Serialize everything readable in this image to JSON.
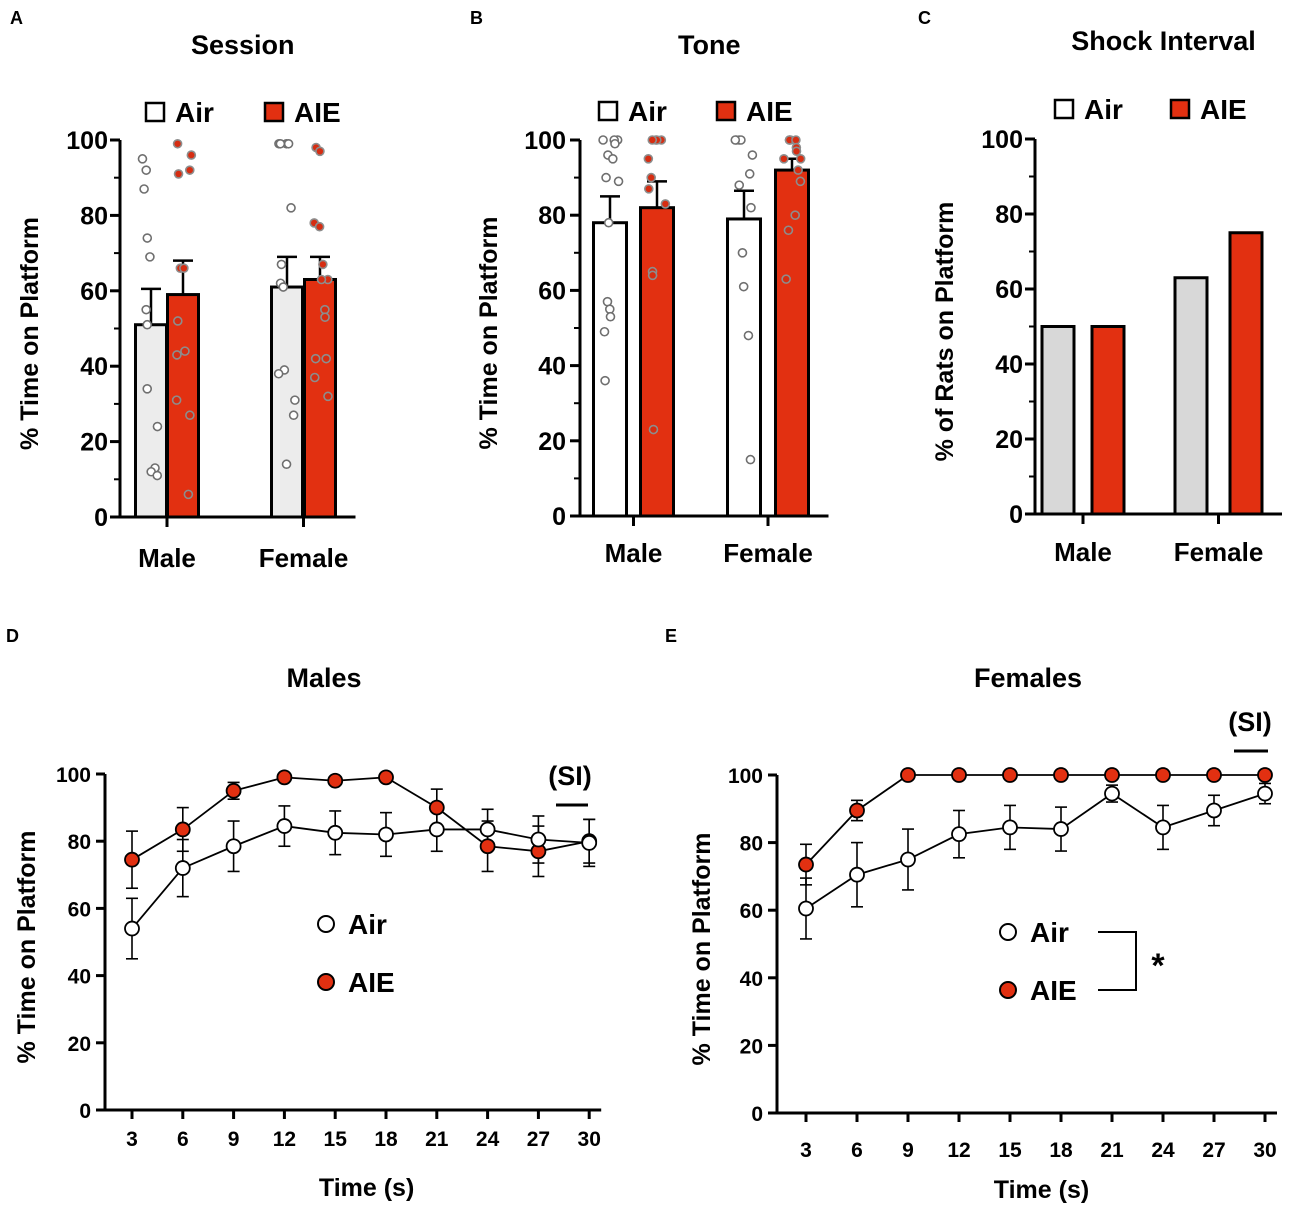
{
  "colors": {
    "air_fill": "#ffffff",
    "air_fill_session": "#ececec",
    "air_fill_shock": "#d8d8d8",
    "aie_fill": "#e23011",
    "dot_air": "#ffffff",
    "dot_air_stroke": "#6f6f6f",
    "dot_aie": "#d62d12",
    "dot_aie_stroke": "#8d8d8d",
    "line": "#000000"
  },
  "chart_data": [
    {
      "panel_label": "A",
      "type": "bar",
      "title": "Session",
      "ylabel": "% Time on Platform",
      "xlabel": "",
      "ylim": [
        0,
        100
      ],
      "yticks": [
        "0",
        "20",
        "40",
        "60",
        "80",
        "100"
      ],
      "categories": [
        "Male",
        "Female"
      ],
      "legend": [
        "Air",
        "AIE"
      ],
      "series": [
        {
          "name": "Air",
          "values": [
            51,
            61
          ],
          "sem": [
            9.5,
            8
          ],
          "points": [
            [
              95,
              92,
              87,
              74,
              69,
              55,
              51,
              34,
              24,
              13,
              12,
              11
            ],
            [
              99,
              99,
              99,
              99,
              82,
              67,
              62,
              61,
              39,
              38,
              31,
              27,
              14
            ]
          ]
        },
        {
          "name": "AIE",
          "values": [
            59,
            63
          ],
          "sem": [
            9,
            6
          ],
          "points": [
            [
              99,
              96,
              92,
              91,
              66,
              66,
              52,
              44,
              43,
              31,
              27,
              6
            ],
            [
              98,
              97,
              78,
              77,
              67,
              63,
              63,
              55,
              53,
              42,
              42,
              37,
              32
            ]
          ]
        }
      ]
    },
    {
      "panel_label": "B",
      "type": "bar",
      "title": "Tone",
      "ylabel": "% Time on Platform",
      "xlabel": "",
      "ylim": [
        0,
        100
      ],
      "yticks": [
        "0",
        "20",
        "40",
        "60",
        "80",
        "100"
      ],
      "categories": [
        "Male",
        "Female"
      ],
      "legend": [
        "Air",
        "AIE"
      ],
      "series": [
        {
          "name": "Air",
          "values": [
            78,
            79
          ],
          "sem": [
            7,
            7.5
          ],
          "points": [
            [
              100,
              100,
              100,
              99,
              96,
              95,
              90,
              89,
              78,
              57,
              55,
              53,
              49,
              36
            ],
            [
              100,
              100,
              100,
              100,
              96,
              91,
              88,
              82,
              70,
              61,
              48,
              15
            ]
          ]
        },
        {
          "name": "AIE",
          "values": [
            82,
            92
          ],
          "sem": [
            7,
            3
          ],
          "points": [
            [
              100,
              100,
              100,
              100,
              95,
              90,
              87,
              83,
              65,
              64,
              23
            ],
            [
              100,
              100,
              100,
              100,
              98,
              97,
              95,
              95,
              92,
              89,
              80,
              76,
              63
            ]
          ]
        }
      ]
    },
    {
      "panel_label": "C",
      "type": "bar",
      "title": "Shock Interval",
      "ylabel": "% of Rats on Platform",
      "xlabel": "",
      "ylim": [
        0,
        100
      ],
      "yticks": [
        "0",
        "20",
        "40",
        "60",
        "80",
        "100"
      ],
      "categories": [
        "Male",
        "Female"
      ],
      "legend": [
        "Air",
        "AIE"
      ],
      "series": [
        {
          "name": "Air",
          "values": [
            50,
            63
          ]
        },
        {
          "name": "AIE",
          "values": [
            50,
            75
          ]
        }
      ]
    },
    {
      "panel_label": "D",
      "type": "line",
      "title": "Males",
      "xlabel": "Time (s)",
      "ylabel": "% Time on Platform",
      "x": [
        3,
        6,
        9,
        12,
        15,
        18,
        21,
        24,
        27,
        30
      ],
      "ylim": [
        0,
        100
      ],
      "yticks": [
        "0",
        "20",
        "40",
        "60",
        "80",
        "100"
      ],
      "annotation": "(SI)",
      "series": [
        {
          "name": "Air",
          "values": [
            54,
            72,
            78.5,
            84.5,
            82.5,
            82,
            83.5,
            83.5,
            80.5,
            79.5
          ],
          "sem": [
            9,
            8.5,
            7.5,
            6,
            6.5,
            6.5,
            6.5,
            6,
            7,
            7
          ]
        },
        {
          "name": "AIE",
          "values": [
            74.5,
            83.5,
            95,
            99,
            98,
            99,
            90,
            78.5,
            77,
            80
          ],
          "sem": [
            8.5,
            6.5,
            2.5,
            0.5,
            0.5,
            0.5,
            5.5,
            7.5,
            7.5,
            6.5
          ]
        }
      ]
    },
    {
      "panel_label": "E",
      "type": "line",
      "title": "Females",
      "xlabel": "Time (s)",
      "ylabel": "% Time on Platform",
      "x": [
        3,
        6,
        9,
        12,
        15,
        18,
        21,
        24,
        27,
        30
      ],
      "ylim": [
        0,
        100
      ],
      "yticks": [
        "0",
        "20",
        "40",
        "60",
        "80",
        "100"
      ],
      "annotation": "(SI)",
      "significance": "*",
      "series": [
        {
          "name": "Air",
          "values": [
            60.5,
            70.5,
            75,
            82.5,
            84.5,
            84,
            94.5,
            84.5,
            89.5,
            94.5
          ],
          "sem": [
            9,
            9.5,
            9,
            7,
            6.5,
            6.5,
            2.5,
            6.5,
            4.5,
            3
          ]
        },
        {
          "name": "AIE",
          "values": [
            73.5,
            89.5,
            100,
            100,
            100,
            100,
            100,
            100,
            100,
            100
          ],
          "sem": [
            6,
            3,
            0,
            0,
            0,
            0,
            0,
            0,
            0,
            0
          ]
        }
      ]
    }
  ]
}
